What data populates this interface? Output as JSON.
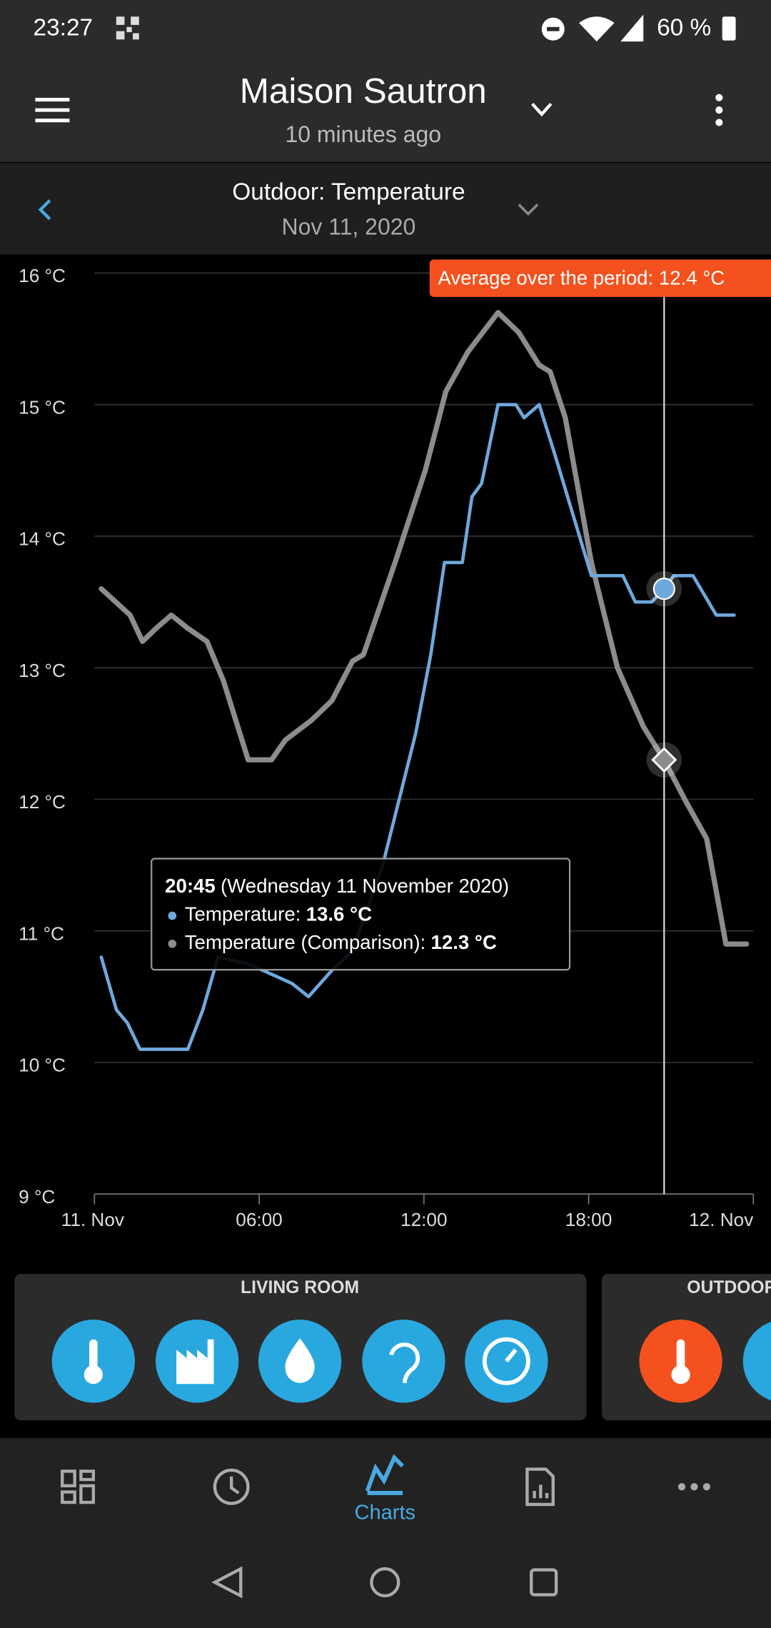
{
  "status_bar": {
    "time": "23:27",
    "battery": "60 %"
  },
  "header": {
    "title": "Maison Sautron",
    "subtitle": "10 minutes ago"
  },
  "selector": {
    "title": "Outdoor: Temperature",
    "date": "Nov 11, 2020"
  },
  "chart_data": {
    "type": "line",
    "xlim": [
      0,
      24
    ],
    "xticks": [
      {
        "value": 0,
        "label": "11. Nov"
      },
      {
        "value": 6,
        "label": "06:00"
      },
      {
        "value": 12,
        "label": "12:00"
      },
      {
        "value": 18,
        "label": "18:00"
      },
      {
        "value": 24,
        "label": "12. Nov"
      }
    ],
    "ylim": [
      9,
      16
    ],
    "yticks": [
      {
        "value": 9,
        "label": "9 °C"
      },
      {
        "value": 10,
        "label": "10 °C"
      },
      {
        "value": 11,
        "label": "11 °C"
      },
      {
        "value": 12,
        "label": "12 °C"
      },
      {
        "value": 13,
        "label": "13 °C"
      },
      {
        "value": 14,
        "label": "14 °C"
      },
      {
        "value": 15,
        "label": "15 °C"
      },
      {
        "value": 16,
        "label": "16 °C"
      }
    ],
    "grid": true,
    "series": [
      {
        "color": "#6fa8dc",
        "x": [
          0.25,
          0.8,
          1.2,
          1.66,
          3.4,
          3.95,
          4.5,
          5.6,
          7.2,
          7.8,
          8.65,
          9.4,
          10.5,
          11.1,
          11.7,
          12.25,
          12.75,
          13.4,
          13.75,
          14.1,
          14.7,
          15.35,
          15.65,
          16.2,
          16.8,
          18.1,
          19.25,
          19.7,
          20.3,
          20.75,
          21.1,
          21.8,
          22.65,
          23.3
        ],
        "values": [
          10.8,
          10.4,
          10.3,
          10.1,
          10.1,
          10.4,
          10.8,
          10.75,
          10.6,
          10.5,
          10.7,
          10.85,
          11.5,
          12.0,
          12.5,
          13.1,
          13.8,
          13.8,
          14.3,
          14.4,
          15.0,
          15.0,
          14.9,
          15.0,
          14.6,
          13.7,
          13.7,
          13.5,
          13.5,
          13.6,
          13.7,
          13.7,
          13.4,
          13.4
        ]
      },
      {
        "color": "#8c8c8c",
        "x": [
          0.25,
          1.3,
          1.75,
          2.25,
          2.8,
          3.4,
          4.1,
          4.7,
          5.6,
          6.45,
          6.95,
          7.9,
          8.65,
          9.4,
          9.8,
          10.95,
          12.05,
          12.8,
          13.6,
          14.7,
          15.45,
          16.2,
          16.6,
          17.15,
          18.1,
          19.05,
          20.0,
          20.75,
          21.5,
          22.3,
          23.0,
          23.75
        ],
        "values": [
          13.6,
          13.4,
          13.2,
          13.3,
          13.4,
          13.3,
          13.2,
          12.9,
          12.3,
          12.3,
          12.45,
          12.6,
          12.75,
          13.05,
          13.1,
          13.8,
          14.5,
          15.1,
          15.4,
          15.7,
          15.55,
          15.3,
          15.25,
          14.9,
          13.8,
          13.0,
          12.55,
          12.3,
          12.0,
          11.7,
          10.9,
          10.9
        ]
      }
    ],
    "annotation": "Average over the period: 12.4 °C",
    "crosshair_x": 20.75
  },
  "tooltip": {
    "time": "20:45",
    "date": "(Wednesday 11 November 2020)",
    "rows": [
      {
        "label": "Temperature:",
        "value": "13.6 °C"
      },
      {
        "label": "Temperature (Comparison):",
        "value": "12.3 °C"
      }
    ]
  },
  "cards": [
    {
      "title": "LIVING ROOM"
    },
    {
      "title": "OUTDOOR"
    }
  ],
  "nav": {
    "active": "Charts"
  }
}
